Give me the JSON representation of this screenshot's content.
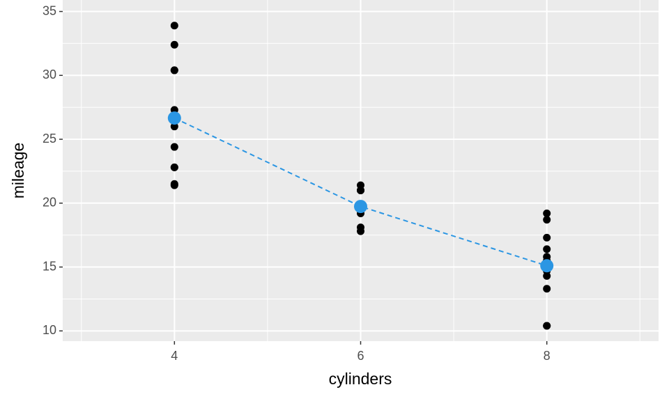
{
  "chart_data": {
    "type": "scatter",
    "x_label": "cylinders",
    "y_label": "mileage",
    "xlim": [
      2.8,
      9.2
    ],
    "xticks": [
      4,
      6,
      8
    ],
    "xminor": [
      3,
      5,
      7,
      9
    ],
    "ylim": [
      9.2,
      35.9
    ],
    "yticks": [
      10,
      15,
      20,
      25,
      30,
      35
    ],
    "yminor": [
      12.5,
      17.5,
      22.5,
      27.5,
      32.5
    ],
    "grid": true,
    "series": [
      {
        "color": "#000000",
        "size": 5.5,
        "x": [
          4,
          4,
          4,
          4,
          4,
          4,
          4,
          4,
          4,
          4,
          4,
          6,
          6,
          6,
          6,
          6,
          6,
          6,
          8,
          8,
          8,
          8,
          8,
          8,
          8,
          8,
          8,
          8,
          8,
          8,
          8,
          8
        ],
        "values": [
          22.8,
          24.4,
          22.8,
          32.4,
          30.4,
          33.9,
          21.5,
          27.3,
          26.0,
          30.4,
          21.4,
          21.0,
          21.0,
          21.4,
          18.1,
          19.2,
          17.8,
          19.7,
          18.7,
          14.3,
          16.4,
          17.3,
          15.2,
          10.4,
          10.4,
          14.7,
          15.5,
          15.2,
          13.3,
          19.2,
          15.8,
          15.0
        ]
      },
      {
        "color": "#2b96e3",
        "size": 9.5,
        "line": "dashed",
        "x": [
          4,
          6,
          8
        ],
        "values": [
          26.66,
          19.74,
          15.1
        ]
      }
    ]
  }
}
